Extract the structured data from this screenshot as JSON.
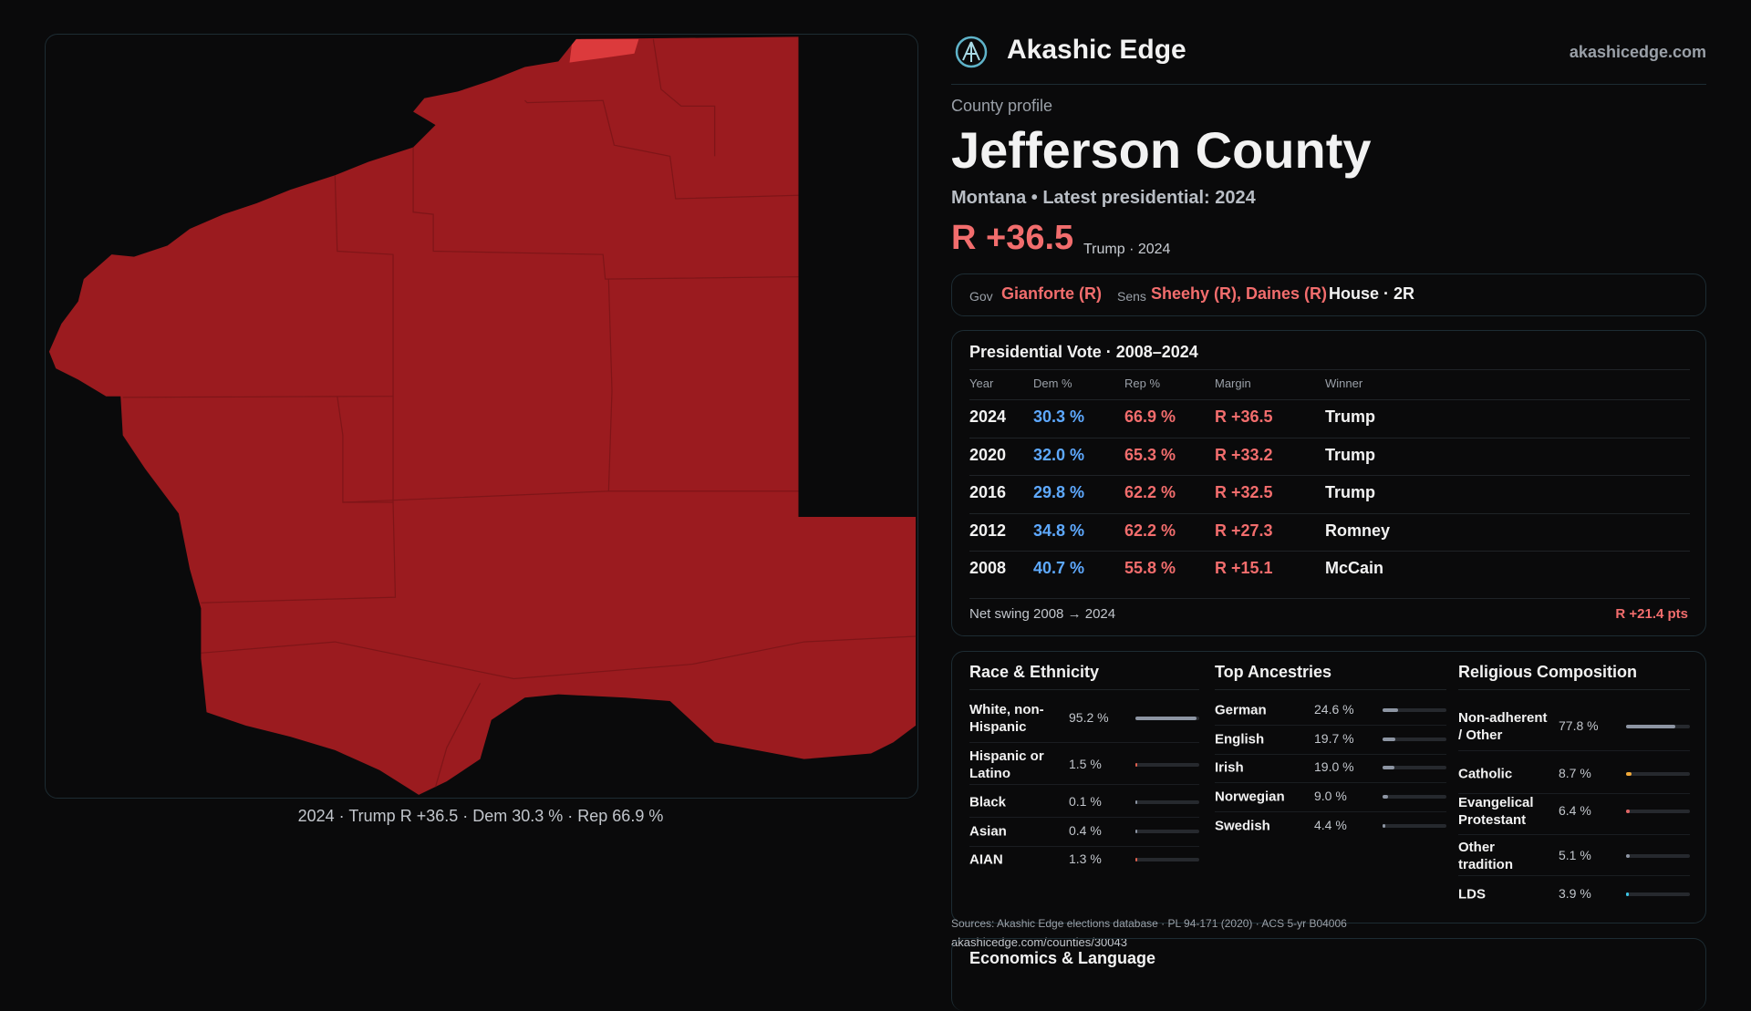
{
  "header": {
    "brand": "Akashic Edge",
    "site": "akashicedge.com"
  },
  "map": {
    "caption": "2024 · Trump R +36.5 · Dem 30.3 % · Rep 66.9 %"
  },
  "profile": {
    "kicker": "County profile",
    "title": "Jefferson County",
    "subtitle": "Montana • Latest presidential: 2024",
    "margin": "R +36.5",
    "margin_note": "Trump · 2024"
  },
  "officials": {
    "gov_label": "Gov",
    "gov": "Gianforte (R)",
    "sens_label": "Sens",
    "sens": "Sheehy (R), Daines (R)",
    "house": "House · 2R"
  },
  "presidential": {
    "title": "Presidential Vote · 2008–2024",
    "columns": [
      "Year",
      "Dem %",
      "Rep %",
      "Margin",
      "Winner"
    ],
    "rows": [
      [
        "2024",
        "30.3 %",
        "66.9 %",
        "R +36.5",
        "Trump"
      ],
      [
        "2020",
        "32.0 %",
        "65.3 %",
        "R +33.2",
        "Trump"
      ],
      [
        "2016",
        "29.8 %",
        "62.2 %",
        "R +32.5",
        "Trump"
      ],
      [
        "2012",
        "34.8 %",
        "62.2 %",
        "R +27.3",
        "Romney"
      ],
      [
        "2008",
        "40.7 %",
        "55.8 %",
        "R +15.1",
        "McCain"
      ]
    ],
    "footer_label": "Net swing 2008 → 2024",
    "footer_value": "R +21.4 pts"
  },
  "race": {
    "title": "Race & Ethnicity",
    "items": [
      {
        "name": "White, non-Hispanic",
        "value": 95.2,
        "label": "95.2 %",
        "color": "#8d95a3"
      },
      {
        "name": "Hispanic or Latino",
        "value": 1.5,
        "label": "1.5 %",
        "color": "#e0604f"
      },
      {
        "name": "Black",
        "value": 0.1,
        "label": "0.1 %",
        "color": "#8d95a3"
      },
      {
        "name": "Asian",
        "value": 0.4,
        "label": "0.4 %",
        "color": "#8d95a3"
      },
      {
        "name": "AIAN",
        "value": 1.3,
        "label": "1.3 %",
        "color": "#e0604f"
      }
    ]
  },
  "ancestry": {
    "title": "Top Ancestries",
    "items": [
      {
        "name": "German",
        "value": 24.6,
        "label": "24.6 %",
        "color": "#8d95a3"
      },
      {
        "name": "English",
        "value": 19.7,
        "label": "19.7 %",
        "color": "#8d95a3"
      },
      {
        "name": "Irish",
        "value": 19.0,
        "label": "19.0 %",
        "color": "#8d95a3"
      },
      {
        "name": "Norwegian",
        "value": 9.0,
        "label": "9.0 %",
        "color": "#8d95a3"
      },
      {
        "name": "Swedish",
        "value": 4.4,
        "label": "4.4 %",
        "color": "#8d95a3"
      }
    ]
  },
  "religion": {
    "title": "Religious Composition",
    "items": [
      {
        "name": "Non-adherent / Other",
        "value": 77.8,
        "label": "77.8 %",
        "color": "#8d95a3"
      },
      {
        "name": "Catholic",
        "value": 8.7,
        "label": "8.7 %",
        "color": "#f0a838"
      },
      {
        "name": "Evangelical Protestant",
        "value": 6.4,
        "label": "6.4 %",
        "color": "#e06565"
      },
      {
        "name": "Other tradition",
        "value": 5.1,
        "label": "5.1 %",
        "color": "#8d95a3"
      },
      {
        "name": "LDS",
        "value": 3.9,
        "label": "3.9 %",
        "color": "#3cc4e4"
      }
    ]
  },
  "sources": "Sources: Akashic Edge elections database · PL 94-171 (2020) · ACS 5-yr B04006",
  "url": "akashicedge.com/counties/30043",
  "economics": {
    "title": "Economics & Language"
  }
}
